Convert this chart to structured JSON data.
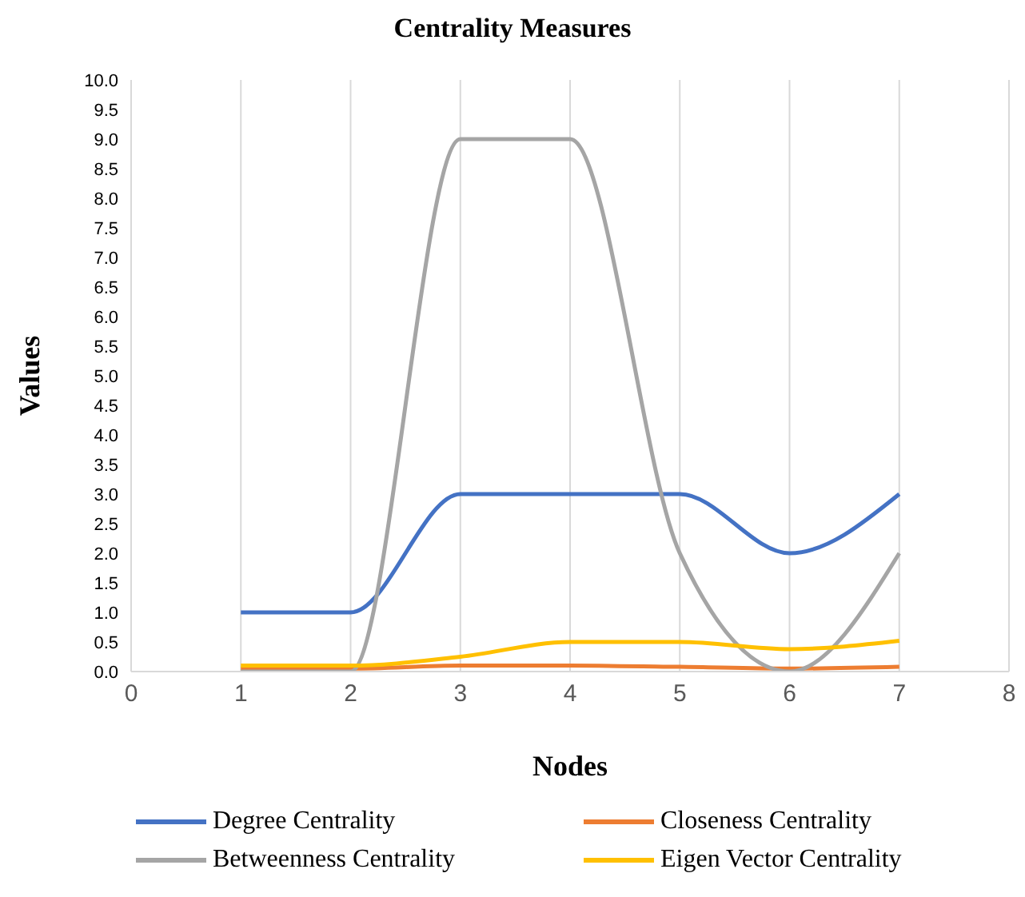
{
  "chart_data": {
    "type": "line",
    "title": "Centrality Measures",
    "xlabel": "Nodes",
    "ylabel": "Values",
    "x": [
      1,
      2,
      3,
      4,
      5,
      6,
      7
    ],
    "series": [
      {
        "name": "Degree Centrality",
        "color": "#4472c4",
        "values": [
          1,
          1,
          3,
          3,
          3,
          2,
          3
        ]
      },
      {
        "name": "Closeness Centrality",
        "color": "#ed7d31",
        "values": [
          0.05,
          0.05,
          0.1,
          0.1,
          0.08,
          0.05,
          0.08
        ]
      },
      {
        "name": "Betweenness Centrality",
        "color": "#a5a5a5",
        "values": [
          0,
          0,
          9,
          9,
          2,
          0,
          2
        ]
      },
      {
        "name": "Eigen Vector Centrality",
        "color": "#ffc000",
        "values": [
          0.1,
          0.1,
          0.25,
          0.5,
          0.5,
          0.38,
          0.52
        ]
      }
    ],
    "xlim": [
      0,
      8
    ],
    "xticks": [
      0,
      1,
      2,
      3,
      4,
      5,
      6,
      7,
      8
    ],
    "ylim": [
      0,
      10
    ],
    "yticks": [
      {
        "value": 0,
        "label": "0.0"
      },
      {
        "value": 0.5,
        "label": "0.5"
      },
      {
        "value": 1,
        "label": "1.0"
      },
      {
        "value": 1.5,
        "label": "1.5"
      },
      {
        "value": 2,
        "label": "2.0"
      },
      {
        "value": 2.5,
        "label": "2.5"
      },
      {
        "value": 3,
        "label": "3.0"
      },
      {
        "value": 3.5,
        "label": "3.5"
      },
      {
        "value": 4,
        "label": "4.0"
      },
      {
        "value": 4.5,
        "label": "4.5"
      },
      {
        "value": 5,
        "label": "5.0"
      },
      {
        "value": 5.5,
        "label": "5.5"
      },
      {
        "value": 6,
        "label": "6.0"
      },
      {
        "value": 6.5,
        "label": "6.5"
      },
      {
        "value": 7,
        "label": "7.0"
      },
      {
        "value": 7.5,
        "label": "7.5"
      },
      {
        "value": 8,
        "label": "8.0"
      },
      {
        "value": 8.5,
        "label": "8.5"
      },
      {
        "value": 9,
        "label": "9.0"
      },
      {
        "value": 9.5,
        "label": "9.5"
      },
      {
        "value": 10,
        "label": "10.0"
      }
    ],
    "grid": "x",
    "legend": "bottom",
    "marker": "none",
    "line_style": "solid"
  }
}
